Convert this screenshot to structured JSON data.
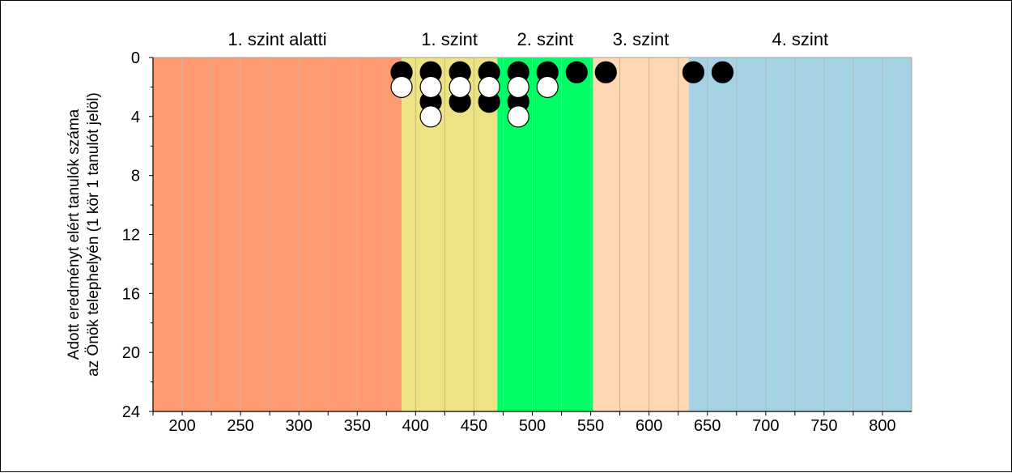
{
  "chart_data": {
    "type": "scatter",
    "title": "",
    "xlabel": "",
    "ylabel_lines": [
      "Adott eredményt elért tanulók száma",
      "az Önök telephelyén (1 kör 1 tanulót jelöl)"
    ],
    "xlim": [
      175,
      825
    ],
    "ylim": [
      0,
      24
    ],
    "y_inverted": true,
    "grid": true,
    "xticks": [
      200,
      250,
      300,
      350,
      400,
      450,
      500,
      550,
      600,
      650,
      700,
      750,
      800
    ],
    "yticks": [
      0,
      4,
      8,
      12,
      16,
      20,
      24
    ],
    "bands": [
      {
        "label": "1. szint alatti",
        "x_start": 175,
        "x_end": 388,
        "color": "#FF9A70"
      },
      {
        "label": "1. szint",
        "x_start": 388,
        "x_end": 470,
        "color": "#EDE284"
      },
      {
        "label": "2. szint",
        "x_start": 470,
        "x_end": 552,
        "color": "#00FF66"
      },
      {
        "label": "3. szint",
        "x_start": 552,
        "x_end": 634,
        "color": "#FFD7B0"
      },
      {
        "label": "4. szint",
        "x_start": 634,
        "x_end": 825,
        "color": "#A6D3E3"
      }
    ],
    "series": [
      {
        "marker": "filled",
        "color": "#000000",
        "points": [
          {
            "x": 388,
            "y": 1
          },
          {
            "x": 413,
            "y": 1
          },
          {
            "x": 438,
            "y": 1
          },
          {
            "x": 463,
            "y": 1
          },
          {
            "x": 488,
            "y": 1
          },
          {
            "x": 513,
            "y": 1
          },
          {
            "x": 538,
            "y": 1
          },
          {
            "x": 563,
            "y": 1
          },
          {
            "x": 638,
            "y": 1
          },
          {
            "x": 663,
            "y": 1
          },
          {
            "x": 413,
            "y": 3
          },
          {
            "x": 438,
            "y": 3
          },
          {
            "x": 463,
            "y": 3
          },
          {
            "x": 488,
            "y": 3
          }
        ]
      },
      {
        "marker": "hollow",
        "color": "#ffffff",
        "points": [
          {
            "x": 388,
            "y": 2
          },
          {
            "x": 413,
            "y": 2
          },
          {
            "x": 438,
            "y": 2
          },
          {
            "x": 463,
            "y": 2
          },
          {
            "x": 488,
            "y": 2
          },
          {
            "x": 513,
            "y": 2
          },
          {
            "x": 413,
            "y": 4
          },
          {
            "x": 488,
            "y": 4
          }
        ]
      }
    ]
  }
}
